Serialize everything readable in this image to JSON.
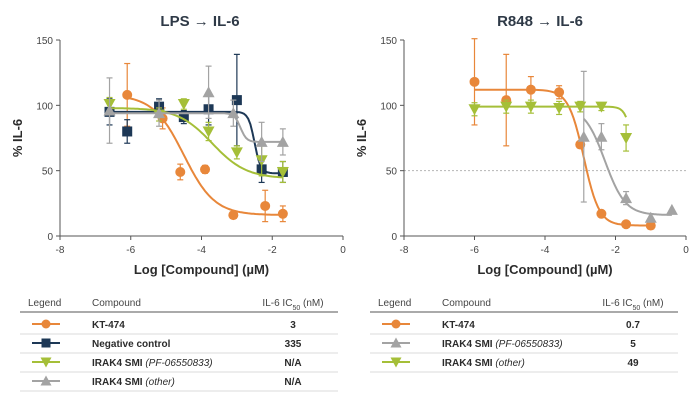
{
  "colors": {
    "kt474": "#e8873a",
    "negative_control": "#1d3856",
    "irak4_pf": "#a5bf38",
    "irak4_other": "#a3a3a3",
    "axis": "#555555",
    "text": "#2b2b2b"
  },
  "chart_data": [
    {
      "type": "scatter",
      "title": "LPS → IL-6",
      "xlabel": "Log [Compound] (µM)",
      "ylabel": "% IL-6",
      "xlim": [
        -8,
        0
      ],
      "ylim": [
        0,
        150
      ],
      "xticks": [
        -8,
        -6,
        -4,
        -2,
        0
      ],
      "yticks": [
        0,
        50,
        100,
        150
      ],
      "reference_line": null,
      "series": [
        {
          "key": "kt474",
          "marker": "circle",
          "color": "#e8873a",
          "points": [
            {
              "x": -6.1,
              "y": 108,
              "err": 24
            },
            {
              "x": -5.1,
              "y": 90,
              "err": 8
            },
            {
              "x": -4.6,
              "y": 49,
              "err": 6
            },
            {
              "x": -3.9,
              "y": 51,
              "err": 3
            },
            {
              "x": -3.1,
              "y": 16,
              "err": 0
            },
            {
              "x": -2.2,
              "y": 23,
              "err": 12
            },
            {
              "x": -1.7,
              "y": 17,
              "err": 6
            }
          ],
          "fit": {
            "top": 108,
            "bottom": 16,
            "log_ic50": -4.5,
            "hill": 1.0
          }
        },
        {
          "key": "negative_control",
          "marker": "square",
          "color": "#1d3856",
          "points": [
            {
              "x": -6.6,
              "y": 95,
              "err": 10
            },
            {
              "x": -6.1,
              "y": 80,
              "err": 9
            },
            {
              "x": -5.2,
              "y": 99,
              "err": 6
            },
            {
              "x": -4.5,
              "y": 91,
              "err": 5
            },
            {
              "x": -3.8,
              "y": 97,
              "err": 12
            },
            {
              "x": -3.0,
              "y": 104,
              "err": 35
            },
            {
              "x": -2.3,
              "y": 51,
              "err": 10
            },
            {
              "x": -1.7,
              "y": 49,
              "err": 8
            }
          ],
          "fit": {
            "top": 95,
            "bottom": 48,
            "log_ic50": -2.5,
            "hill": 5.0
          }
        },
        {
          "key": "irak4_pf",
          "marker": "triangle-down",
          "color": "#a5bf38",
          "points": [
            {
              "x": -6.6,
              "y": 101,
              "err": 5
            },
            {
              "x": -5.2,
              "y": 93,
              "err": 5
            },
            {
              "x": -4.5,
              "y": 101,
              "err": 4
            },
            {
              "x": -3.8,
              "y": 80,
              "err": 7
            },
            {
              "x": -3.0,
              "y": 64,
              "err": 5
            },
            {
              "x": -2.3,
              "y": 58,
              "err": 12
            },
            {
              "x": -1.7,
              "y": 49,
              "err": 8
            }
          ],
          "fit": {
            "top": 98,
            "bottom": 44,
            "log_ic50": -3.7,
            "hill": 0.9
          }
        },
        {
          "key": "irak4_other",
          "marker": "triangle-up",
          "color": "#a3a3a3",
          "points": [
            {
              "x": -6.6,
              "y": 96,
              "err": 25
            },
            {
              "x": -5.2,
              "y": 94,
              "err": 10
            },
            {
              "x": -3.8,
              "y": 110,
              "err": 20
            },
            {
              "x": -3.1,
              "y": 94,
              "err": 10
            },
            {
              "x": -2.3,
              "y": 72,
              "err": 15
            },
            {
              "x": -1.7,
              "y": 72,
              "err": 10
            }
          ],
          "fit": {
            "top": 94,
            "bottom": 72,
            "log_ic50": -2.9,
            "hill": 5.0
          }
        }
      ],
      "legend": {
        "headers": {
          "legend": "Legend",
          "compound": "Compound",
          "ic50": "IL-6 IC50 (nM)"
        },
        "rows": [
          {
            "key": "kt474",
            "name": "KT-474",
            "qualifier": "",
            "value": "3"
          },
          {
            "key": "negative_control",
            "name": "Negative control",
            "qualifier": "",
            "value": "335"
          },
          {
            "key": "irak4_pf",
            "name": "IRAK4 SMI",
            "qualifier": "(PF-06550833)",
            "value": "N/A"
          },
          {
            "key": "irak4_other",
            "name": "IRAK4 SMI",
            "qualifier": "(other)",
            "value": "N/A"
          }
        ]
      }
    },
    {
      "type": "scatter",
      "title": "R848 → IL-6",
      "xlabel": "Log [Compound] (µM)",
      "ylabel": "% IL-6",
      "xlim": [
        -8,
        0
      ],
      "ylim": [
        0,
        150
      ],
      "xticks": [
        -8,
        -6,
        -4,
        -2,
        0
      ],
      "yticks": [
        0,
        50,
        100,
        150
      ],
      "reference_line": 50,
      "series": [
        {
          "key": "kt474",
          "marker": "circle",
          "color": "#e8873a",
          "points": [
            {
              "x": -6.0,
              "y": 118,
              "err": 33
            },
            {
              "x": -5.1,
              "y": 104,
              "err": 35
            },
            {
              "x": -4.4,
              "y": 112,
              "err": 10
            },
            {
              "x": -3.6,
              "y": 110,
              "err": 5
            },
            {
              "x": -3.0,
              "y": 70,
              "err": 0
            },
            {
              "x": -2.4,
              "y": 17,
              "err": 2
            },
            {
              "x": -1.7,
              "y": 9,
              "err": 1
            },
            {
              "x": -1.0,
              "y": 8,
              "err": 1
            }
          ],
          "fit": {
            "top": 112,
            "bottom": 8,
            "log_ic50": -2.9,
            "hill": 2.0
          }
        },
        {
          "key": "irak4_pf",
          "marker": "triangle-up",
          "color": "#a3a3a3",
          "points": [
            {
              "x": -2.9,
              "y": 76,
              "err": 50
            },
            {
              "x": -2.4,
              "y": 76,
              "err": 10
            },
            {
              "x": -1.7,
              "y": 29,
              "err": 5
            },
            {
              "x": -1.0,
              "y": 14,
              "err": 3
            },
            {
              "x": -0.4,
              "y": 20,
              "err": 0
            }
          ],
          "fit": {
            "top": 99,
            "bottom": 16,
            "log_ic50": -2.3,
            "hill": 1.5
          }
        },
        {
          "key": "irak4_other",
          "marker": "triangle-down",
          "color": "#a5bf38",
          "points": [
            {
              "x": -6.0,
              "y": 97,
              "err": 5
            },
            {
              "x": -5.1,
              "y": 99,
              "err": 5
            },
            {
              "x": -4.4,
              "y": 99,
              "err": 5
            },
            {
              "x": -3.6,
              "y": 98,
              "err": 5
            },
            {
              "x": -3.0,
              "y": 99,
              "err": 4
            },
            {
              "x": -2.4,
              "y": 99,
              "err": 3
            },
            {
              "x": -1.7,
              "y": 75,
              "err": 10
            }
          ],
          "fit": {
            "top": 99,
            "bottom": 40,
            "log_ic50": -1.5,
            "hill": 4.0
          }
        }
      ],
      "legend": {
        "headers": {
          "legend": "Legend",
          "compound": "Compound",
          "ic50": "IL-6 IC50 (nM)"
        },
        "rows": [
          {
            "key": "kt474",
            "name": "KT-474",
            "qualifier": "",
            "value": "0.7"
          },
          {
            "key": "irak4_pf",
            "name": "IRAK4 SMI",
            "qualifier": "(PF-06550833)",
            "value": "5"
          },
          {
            "key": "irak4_other",
            "name": "IRAK4 SMI",
            "qualifier": "(other)",
            "value": "49"
          }
        ]
      }
    }
  ]
}
